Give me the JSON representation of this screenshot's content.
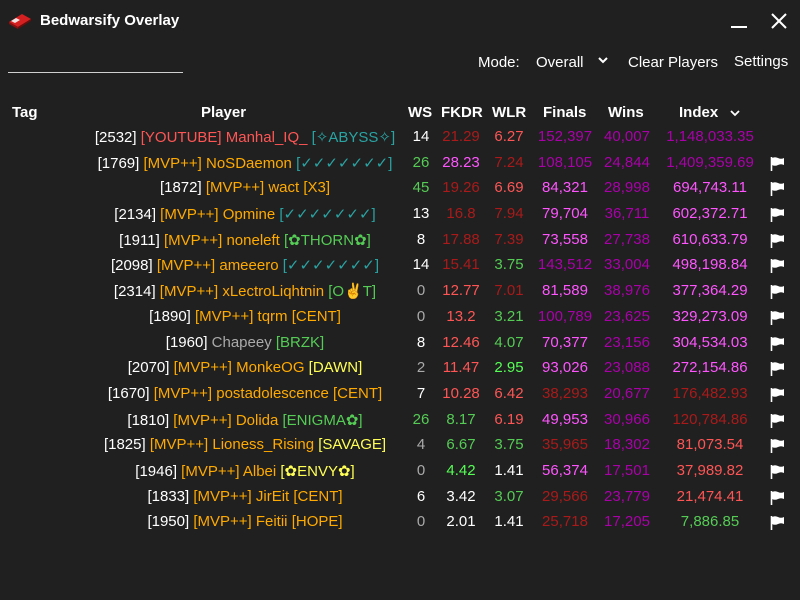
{
  "app": {
    "title": "Bedwarsify Overlay",
    "logo_icon": "bedwars-bed-icon"
  },
  "toolbar": {
    "search_value": "",
    "mode_label": "Mode:",
    "mode_value": "Overall",
    "clear_label": "Clear Players",
    "settings_label": "Settings"
  },
  "table": {
    "headers": {
      "tag": "Tag",
      "player": "Player",
      "ws": "WS",
      "fkdr": "FKDR",
      "wlr": "WLR",
      "finals": "Finals",
      "wins": "Wins",
      "index": "Index"
    },
    "sort_column": "index",
    "rows": [
      {
        "player": [
          {
            "t": "[2532] ",
            "c": "#ffffff"
          },
          {
            "t": "[YOUTUBE] Manhal_IQ_ ",
            "c": "#ff5555"
          },
          {
            "t": "[✧ABYSS✧]",
            "c": "#2aa3a3"
          }
        ],
        "ws": "14",
        "ws_c": "#ffffff",
        "fkdr": "21.29",
        "fkdr_c": "#aa1a1a",
        "wlr": "6.27",
        "wlr_c": "#ff5555",
        "finals": "152,397",
        "finals_c": "#aa00aa",
        "wins": "40,007",
        "wins_c": "#aa00aa",
        "index": "1,148,033.35",
        "index_c": "#aa00aa",
        "flag": false
      },
      {
        "player": [
          {
            "t": "[1769] ",
            "c": "#ffffff"
          },
          {
            "t": "[MVP++] NoSDaemon ",
            "c": "#ffaa00"
          },
          {
            "t": "[✓✓✓✓✓✓✓]",
            "c": "#2aa3a3"
          }
        ],
        "ws": "26",
        "ws_c": "#55cc55",
        "fkdr": "28.23",
        "fkdr_c": "#ff55ff",
        "wlr": "7.24",
        "wlr_c": "#aa1a1a",
        "finals": "108,105",
        "finals_c": "#aa00aa",
        "wins": "24,844",
        "wins_c": "#aa00aa",
        "index": "1,409,359.69",
        "index_c": "#aa00aa",
        "flag": true
      },
      {
        "player": [
          {
            "t": "[1872] ",
            "c": "#ffffff"
          },
          {
            "t": "[MVP++] wact ",
            "c": "#ffaa00"
          },
          {
            "t": "[X3]",
            "c": "#ffaa00"
          }
        ],
        "ws": "45",
        "ws_c": "#55cc55",
        "fkdr": "19.26",
        "fkdr_c": "#aa1a1a",
        "wlr": "6.69",
        "wlr_c": "#ff5555",
        "finals": "84,321",
        "finals_c": "#ff55ff",
        "wins": "28,998",
        "wins_c": "#aa00aa",
        "index": "694,743.11",
        "index_c": "#ff55ff",
        "flag": true
      },
      {
        "player": [
          {
            "t": "[2134] ",
            "c": "#ffffff"
          },
          {
            "t": "[MVP++] Opmine ",
            "c": "#ffaa00"
          },
          {
            "t": "[✓✓✓✓✓✓✓]",
            "c": "#2aa3a3"
          }
        ],
        "ws": "13",
        "ws_c": "#ffffff",
        "fkdr": "16.8",
        "fkdr_c": "#aa1a1a",
        "wlr": "7.94",
        "wlr_c": "#aa1a1a",
        "finals": "79,704",
        "finals_c": "#ff55ff",
        "wins": "36,711",
        "wins_c": "#aa00aa",
        "index": "602,372.71",
        "index_c": "#ff55ff",
        "flag": true
      },
      {
        "player": [
          {
            "t": "[1911] ",
            "c": "#ffffff"
          },
          {
            "t": "[MVP++] noneleft ",
            "c": "#ffaa00"
          },
          {
            "t": "[✿THORN✿]",
            "c": "#55cc55"
          }
        ],
        "ws": "8",
        "ws_c": "#ffffff",
        "fkdr": "17.88",
        "fkdr_c": "#aa1a1a",
        "wlr": "7.39",
        "wlr_c": "#aa1a1a",
        "finals": "73,558",
        "finals_c": "#ff55ff",
        "wins": "27,738",
        "wins_c": "#aa00aa",
        "index": "610,633.79",
        "index_c": "#ff55ff",
        "flag": true
      },
      {
        "player": [
          {
            "t": "[2098] ",
            "c": "#ffffff"
          },
          {
            "t": "[MVP++] ameeero ",
            "c": "#ffaa00"
          },
          {
            "t": "[✓✓✓✓✓✓✓]",
            "c": "#2aa3a3"
          }
        ],
        "ws": "14",
        "ws_c": "#ffffff",
        "fkdr": "15.41",
        "fkdr_c": "#aa1a1a",
        "wlr": "3.75",
        "wlr_c": "#55cc55",
        "finals": "143,512",
        "finals_c": "#aa00aa",
        "wins": "33,004",
        "wins_c": "#aa00aa",
        "index": "498,198.84",
        "index_c": "#ff55ff",
        "flag": true
      },
      {
        "player": [
          {
            "t": "[2314] ",
            "c": "#ffffff"
          },
          {
            "t": "[MVP++] xLectroLiqhtnin ",
            "c": "#ffaa00"
          },
          {
            "t": "[O✌T]",
            "c": "#55cc55"
          }
        ],
        "ws": "0",
        "ws_c": "#aaaaaa",
        "fkdr": "12.77",
        "fkdr_c": "#ff5555",
        "wlr": "7.01",
        "wlr_c": "#aa1a1a",
        "finals": "81,589",
        "finals_c": "#ff55ff",
        "wins": "38,976",
        "wins_c": "#aa00aa",
        "index": "377,364.29",
        "index_c": "#ff55ff",
        "flag": true
      },
      {
        "player": [
          {
            "t": "[1890] ",
            "c": "#ffffff"
          },
          {
            "t": "[MVP++] tqrm ",
            "c": "#ffaa00"
          },
          {
            "t": "[CENT]",
            "c": "#ffaa00"
          }
        ],
        "ws": "0",
        "ws_c": "#aaaaaa",
        "fkdr": "13.2",
        "fkdr_c": "#ff5555",
        "wlr": "3.21",
        "wlr_c": "#55cc55",
        "finals": "100,789",
        "finals_c": "#aa00aa",
        "wins": "23,625",
        "wins_c": "#aa00aa",
        "index": "329,273.09",
        "index_c": "#ff55ff",
        "flag": true
      },
      {
        "player": [
          {
            "t": "[1960] ",
            "c": "#ffffff"
          },
          {
            "t": "Chapeey ",
            "c": "#aaaaaa"
          },
          {
            "t": "[BRZK]",
            "c": "#55cc55"
          }
        ],
        "ws": "8",
        "ws_c": "#ffffff",
        "fkdr": "12.46",
        "fkdr_c": "#ff5555",
        "wlr": "4.07",
        "wlr_c": "#55cc55",
        "finals": "70,377",
        "finals_c": "#ff55ff",
        "wins": "23,156",
        "wins_c": "#aa00aa",
        "index": "304,534.03",
        "index_c": "#ff55ff",
        "flag": true
      },
      {
        "player": [
          {
            "t": "[2070] ",
            "c": "#ffffff"
          },
          {
            "t": "[MVP++] MonkeOG ",
            "c": "#ffaa00"
          },
          {
            "t": "[DAWN]",
            "c": "#ffff55"
          }
        ],
        "ws": "2",
        "ws_c": "#aaaaaa",
        "fkdr": "11.47",
        "fkdr_c": "#ff5555",
        "wlr": "2.95",
        "wlr_c": "#55ff55",
        "finals": "93,026",
        "finals_c": "#ff55ff",
        "wins": "23,088",
        "wins_c": "#aa00aa",
        "index": "272,154.86",
        "index_c": "#ff55ff",
        "flag": true
      },
      {
        "player": [
          {
            "t": "[1670] ",
            "c": "#ffffff"
          },
          {
            "t": "[MVP++] postadolescence ",
            "c": "#ffaa00"
          },
          {
            "t": "[CENT]",
            "c": "#ffaa00"
          }
        ],
        "ws": "7",
        "ws_c": "#ffffff",
        "fkdr": "10.28",
        "fkdr_c": "#ff5555",
        "wlr": "6.42",
        "wlr_c": "#ff5555",
        "finals": "38,293",
        "finals_c": "#aa1a1a",
        "wins": "20,677",
        "wins_c": "#aa00aa",
        "index": "176,482.93",
        "index_c": "#aa1a1a",
        "flag": true
      },
      {
        "player": [
          {
            "t": "[1810] ",
            "c": "#ffffff"
          },
          {
            "t": "[MVP++] Dolida ",
            "c": "#ffaa00"
          },
          {
            "t": "[ENIGMA✿]",
            "c": "#55cc55"
          }
        ],
        "ws": "26",
        "ws_c": "#55cc55",
        "fkdr": "8.17",
        "fkdr_c": "#55cc55",
        "wlr": "6.19",
        "wlr_c": "#ff5555",
        "finals": "49,953",
        "finals_c": "#ff55ff",
        "wins": "30,966",
        "wins_c": "#aa00aa",
        "index": "120,784.86",
        "index_c": "#aa1a1a",
        "flag": true
      },
      {
        "player": [
          {
            "t": "[1825] ",
            "c": "#ffffff"
          },
          {
            "t": "[MVP++] Lioness_Rising ",
            "c": "#ffaa00"
          },
          {
            "t": "[SAVAGE]",
            "c": "#ffff55"
          }
        ],
        "ws": "4",
        "ws_c": "#aaaaaa",
        "fkdr": "6.67",
        "fkdr_c": "#55cc55",
        "wlr": "3.75",
        "wlr_c": "#55cc55",
        "finals": "35,965",
        "finals_c": "#aa1a1a",
        "wins": "18,302",
        "wins_c": "#aa00aa",
        "index": "81,073.54",
        "index_c": "#ff5555",
        "flag": true
      },
      {
        "player": [
          {
            "t": "[1946] ",
            "c": "#ffffff"
          },
          {
            "t": "[MVP++] Albei ",
            "c": "#ffaa00"
          },
          {
            "t": "[✿ENVY✿]",
            "c": "#ffff55"
          }
        ],
        "ws": "0",
        "ws_c": "#aaaaaa",
        "fkdr": "4.42",
        "fkdr_c": "#55ff55",
        "wlr": "1.41",
        "wlr_c": "#ffffff",
        "finals": "56,374",
        "finals_c": "#ff55ff",
        "wins": "17,501",
        "wins_c": "#aa00aa",
        "index": "37,989.82",
        "index_c": "#ff5555",
        "flag": true
      },
      {
        "player": [
          {
            "t": "[1833] ",
            "c": "#ffffff"
          },
          {
            "t": "[MVP++] JirEit ",
            "c": "#ffaa00"
          },
          {
            "t": "[CENT]",
            "c": "#ffaa00"
          }
        ],
        "ws": "6",
        "ws_c": "#ffffff",
        "fkdr": "3.42",
        "fkdr_c": "#ffffff",
        "wlr": "3.07",
        "wlr_c": "#55cc55",
        "finals": "29,566",
        "finals_c": "#aa1a1a",
        "wins": "23,779",
        "wins_c": "#aa00aa",
        "index": "21,474.41",
        "index_c": "#ff5555",
        "flag": true
      },
      {
        "player": [
          {
            "t": "[1950] ",
            "c": "#ffffff"
          },
          {
            "t": "[MVP++] Feitii ",
            "c": "#ffaa00"
          },
          {
            "t": "[HOPE]",
            "c": "#ffaa00"
          }
        ],
        "ws": "0",
        "ws_c": "#aaaaaa",
        "fkdr": "2.01",
        "fkdr_c": "#ffffff",
        "wlr": "1.41",
        "wlr_c": "#ffffff",
        "finals": "25,718",
        "finals_c": "#aa1a1a",
        "wins": "17,205",
        "wins_c": "#aa00aa",
        "index": "7,886.85",
        "index_c": "#55cc55",
        "flag": true
      }
    ]
  }
}
